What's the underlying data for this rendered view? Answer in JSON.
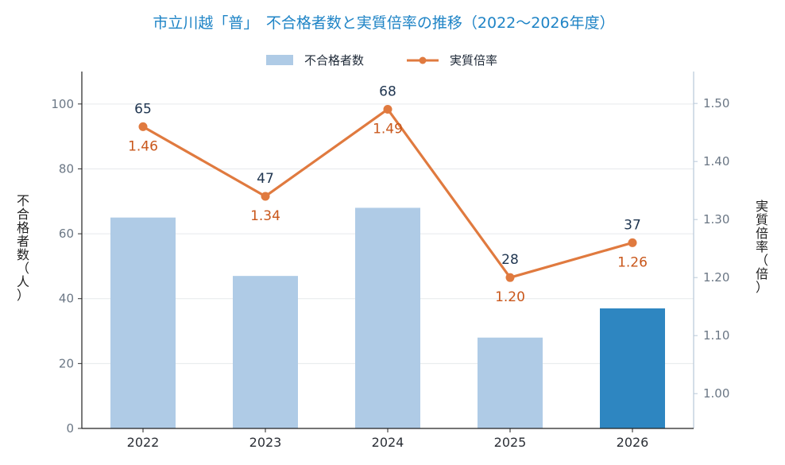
{
  "title": "市立川越「普」　不合格者数と実質倍率の推移（2022〜2026年度）",
  "legend": {
    "bar_label": "不合格者数",
    "line_label": "実質倍率"
  },
  "colors": {
    "title": "#1f84c6",
    "bar": "#afcbe6",
    "bar_highlight": "#2e86c1",
    "line": "#e07a3f",
    "ratio_label": "#c9571b",
    "bar_label": "#1f3550",
    "grid": "#e6e9ec"
  },
  "chart_data": {
    "type": "bar",
    "title": "市立川越「普」　不合格者数と実質倍率の推移（2022〜2026年度）",
    "categories": [
      "2022",
      "2023",
      "2024",
      "2025",
      "2026"
    ],
    "series": [
      {
        "name": "不合格者数",
        "type": "bar",
        "axis": "left",
        "values": [
          65,
          47,
          68,
          28,
          37
        ],
        "highlight_index": 4
      },
      {
        "name": "実質倍率",
        "type": "line",
        "axis": "right",
        "values": [
          1.46,
          1.34,
          1.49,
          1.2,
          1.26
        ]
      }
    ],
    "ylabel": "不合格者数（人）",
    "y2label": "実質倍率（倍）",
    "ylim": [
      0,
      110
    ],
    "y2lim": [
      0.94,
      1.555
    ],
    "yticks": [
      0,
      20,
      40,
      60,
      80,
      100
    ],
    "y2ticks": [
      "1.00",
      "1.10",
      "1.20",
      "1.30",
      "1.40",
      "1.50"
    ],
    "y2tick_values": [
      1.0,
      1.1,
      1.2,
      1.3,
      1.4,
      1.5
    ],
    "ratio_labels": [
      "1.46",
      "1.34",
      "1.49",
      "1.20",
      "1.26"
    ],
    "grid": true,
    "legend_position": "top-center"
  }
}
